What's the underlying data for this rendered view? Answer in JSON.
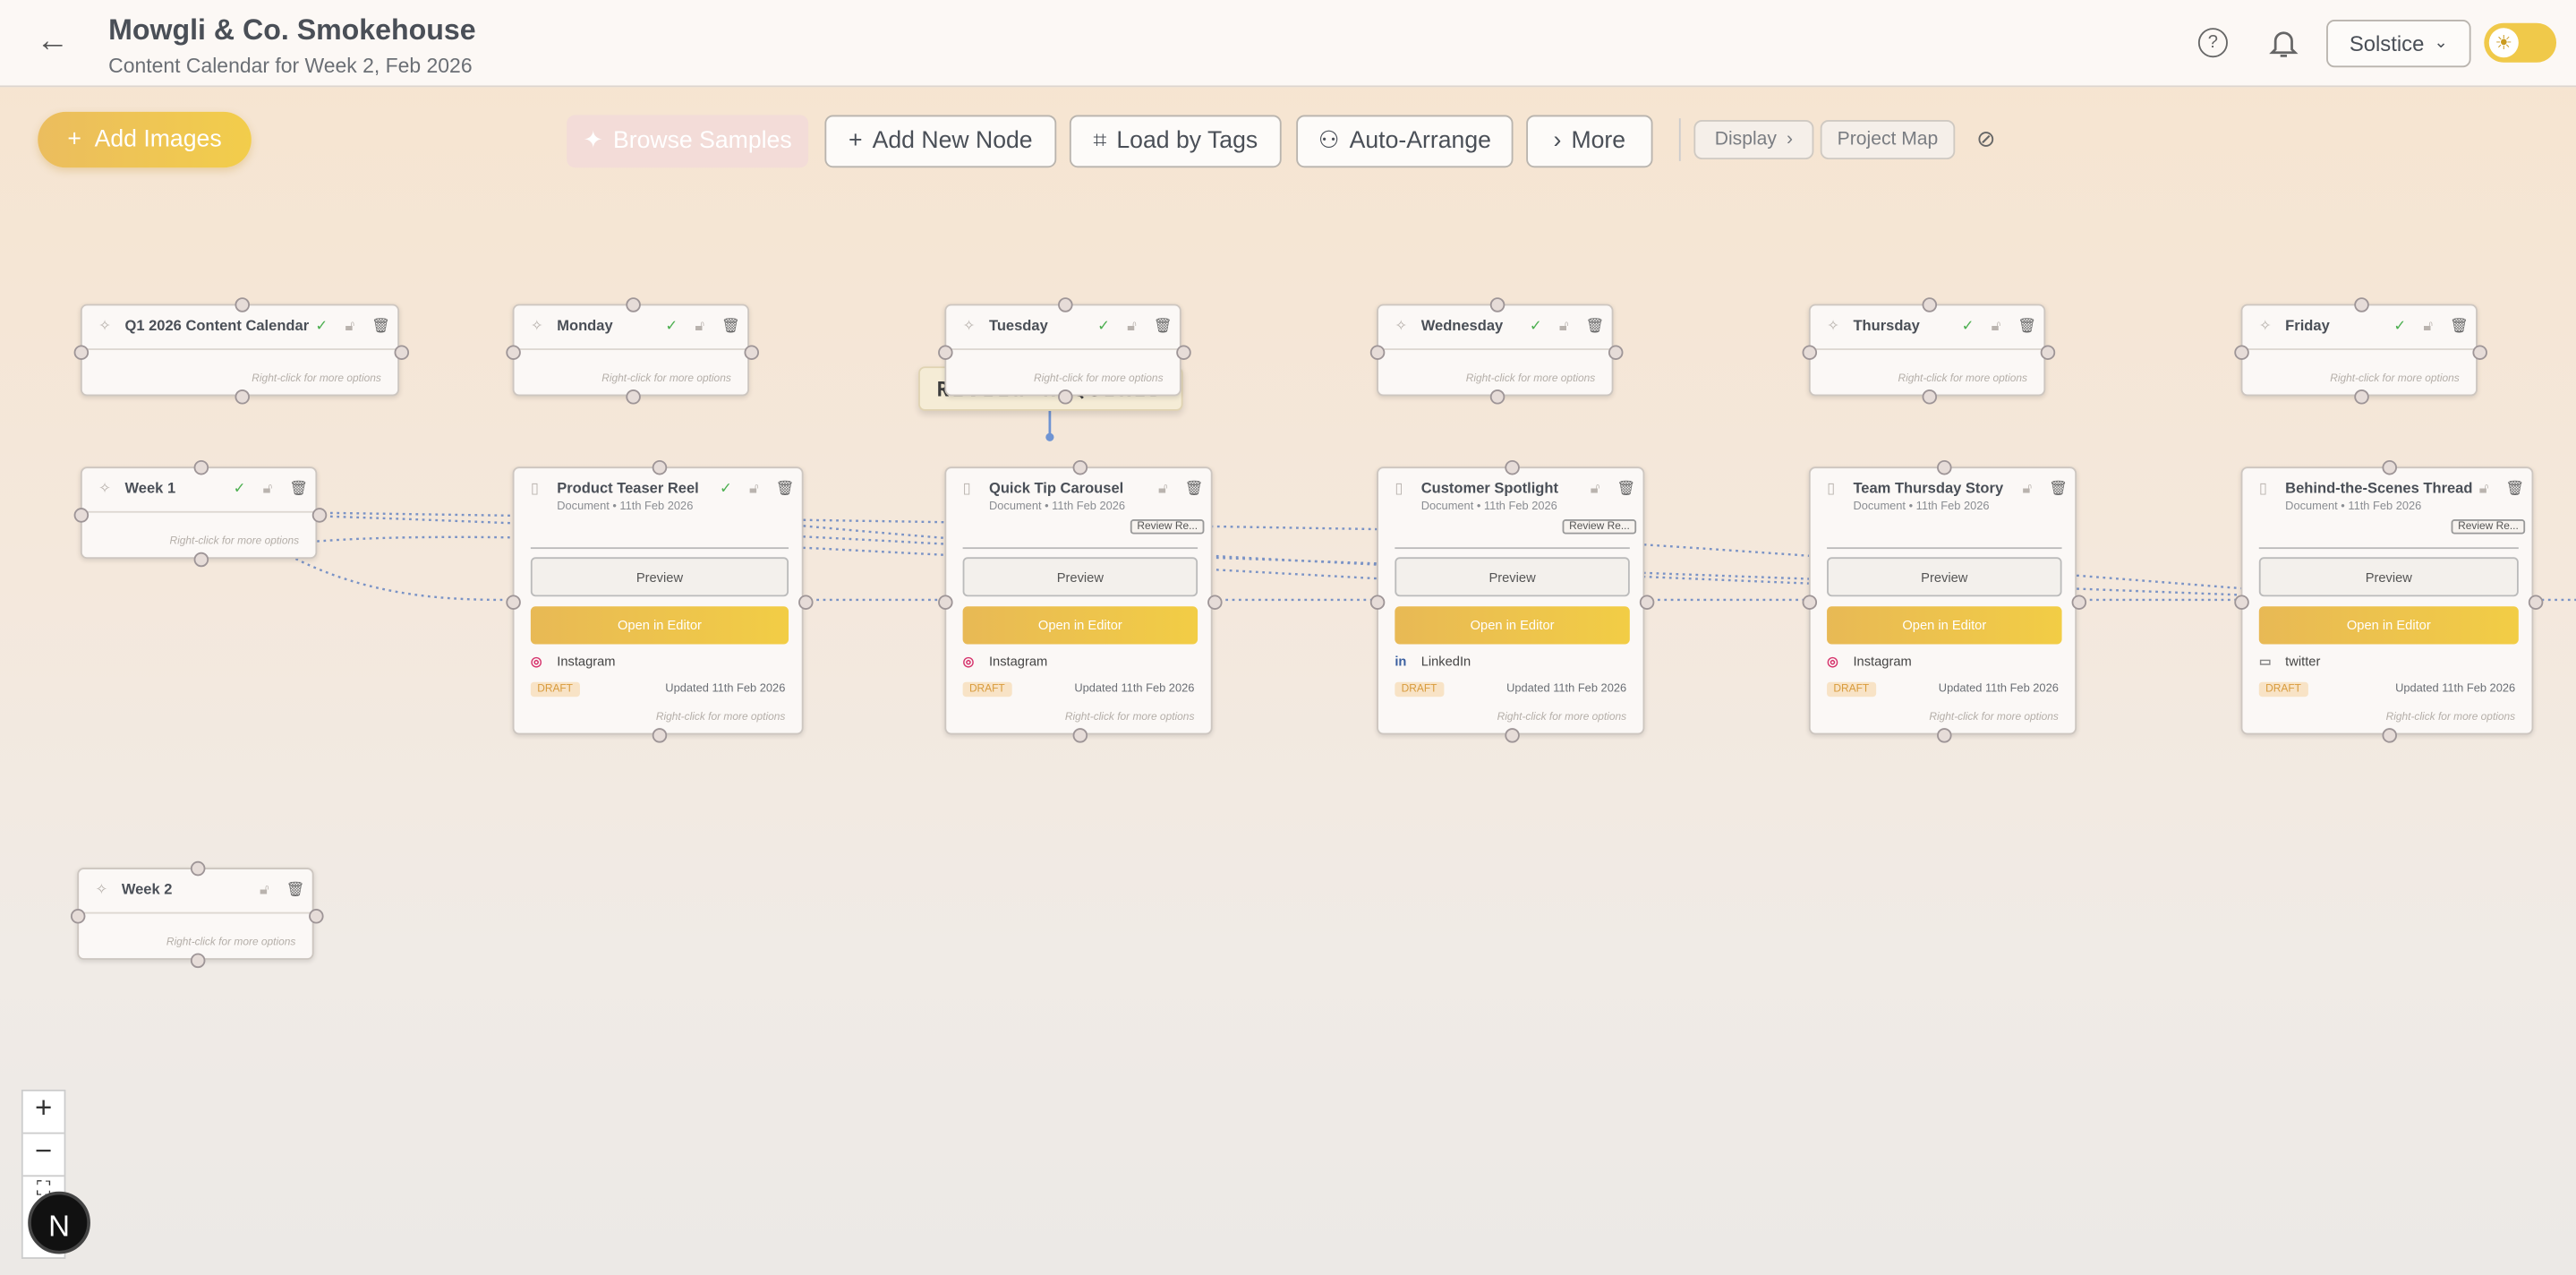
{
  "header": {
    "title": "Mowgli & Co. Smokehouse",
    "subtitle": "Content Calendar for Week 2, Feb 2026",
    "workspace": "Solstice"
  },
  "toolbar": {
    "add_images": "Add Images",
    "buttons": [
      "Browse Samples",
      "Add New Node",
      "Load by Tags",
      "Auto-Arrange",
      "More"
    ],
    "display": "Display",
    "project_map": "Project Map"
  },
  "annotation": "REVIEW REQUIRED",
  "groups": [
    {
      "label": "Q1 2026 Content Calendar",
      "hint": "Right-click for more options",
      "checked": true
    },
    {
      "label": "Monday",
      "hint": "Right-click for more options",
      "checked": true
    },
    {
      "label": "Tuesday",
      "hint": "Right-click for more options",
      "checked": true
    },
    {
      "label": "Wednesday",
      "hint": "Right-click for more options",
      "checked": true
    },
    {
      "label": "Thursday",
      "hint": "Right-click for more options",
      "checked": true
    },
    {
      "label": "Friday",
      "hint": "Right-click for more options",
      "checked": true
    },
    {
      "label": "Week 1",
      "hint": "Right-click for more options",
      "checked": true
    },
    {
      "label": "Week 2",
      "hint": "Right-click for more options",
      "checked": false
    }
  ],
  "posts": [
    {
      "title": "Product Teaser Reel",
      "meta": "Document • 11th Feb 2026",
      "checked": true,
      "preview": "Preview",
      "open": "Open in Editor",
      "platform": "Instagram",
      "status": "DRAFT",
      "updated": "Updated 11th Feb 2026",
      "hint": "Right-click for more options"
    },
    {
      "title": "Quick Tip Carousel",
      "meta": "Document • 11th Feb 2026",
      "badge": "Review Re...",
      "preview": "Preview",
      "open": "Open in Editor",
      "platform": "Instagram",
      "status": "DRAFT",
      "updated": "Updated 11th Feb 2026",
      "hint": "Right-click for more options"
    },
    {
      "title": "Customer Spotlight",
      "meta": "Document • 11th Feb 2026",
      "badge": "Review Re...",
      "preview": "Preview",
      "open": "Open in Editor",
      "platform": "LinkedIn",
      "status": "DRAFT",
      "updated": "Updated 11th Feb 2026",
      "hint": "Right-click for more options"
    },
    {
      "title": "Team Thursday Story",
      "meta": "Document • 11th Feb 2026",
      "preview": "Preview",
      "open": "Open in Editor",
      "platform": "Instagram",
      "status": "DRAFT",
      "updated": "Updated 11th Feb 2026",
      "hint": "Right-click for more options"
    },
    {
      "title": "Behind-the-Scenes Thread",
      "meta": "Document • 11th Feb 2026",
      "badge": "Review Re...",
      "preview": "Preview",
      "open": "Open in Editor",
      "platform": "twitter",
      "status": "DRAFT",
      "updated": "Updated 11th Feb 2026",
      "hint": "Right-click for more options"
    }
  ],
  "avatar": "N"
}
